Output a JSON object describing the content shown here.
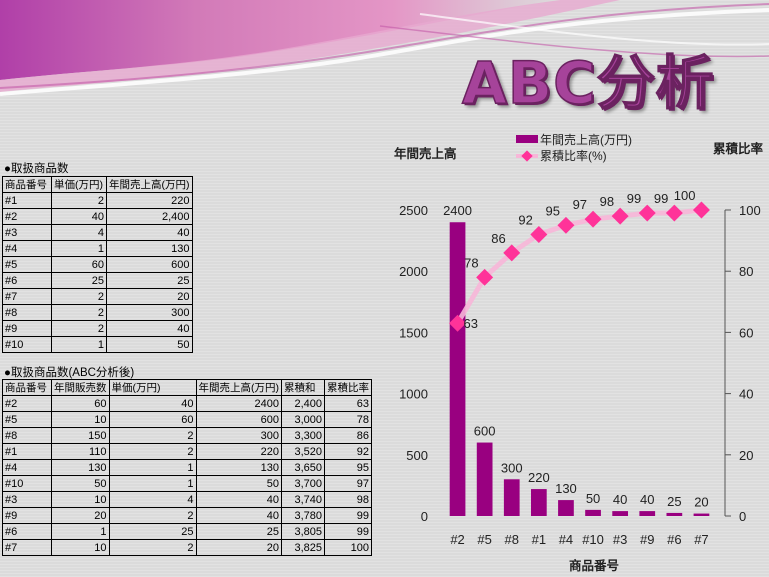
{
  "title": "ABC分析",
  "table1": {
    "title": "●取扱商品数",
    "headers": [
      "商品番号",
      "単価(万円)",
      "年間売上高(万円)"
    ],
    "rows": [
      [
        "#1",
        "2",
        "220"
      ],
      [
        "#2",
        "40",
        "2,400"
      ],
      [
        "#3",
        "4",
        "40"
      ],
      [
        "#4",
        "1",
        "130"
      ],
      [
        "#5",
        "60",
        "600"
      ],
      [
        "#6",
        "25",
        "25"
      ],
      [
        "#7",
        "2",
        "20"
      ],
      [
        "#8",
        "2",
        "300"
      ],
      [
        "#9",
        "2",
        "40"
      ],
      [
        "#10",
        "1",
        "50"
      ]
    ]
  },
  "table2": {
    "title": "●取扱商品数(ABC分析後)",
    "headers": [
      "商品番号",
      "年間販売数",
      "単価(万円)",
      "年間売上高(万円)",
      "累積和",
      "累積比率"
    ],
    "rows": [
      [
        "#2",
        "60",
        "40",
        "2400",
        "2,400",
        "63"
      ],
      [
        "#5",
        "10",
        "60",
        "600",
        "3,000",
        "78"
      ],
      [
        "#8",
        "150",
        "2",
        "300",
        "3,300",
        "86"
      ],
      [
        "#1",
        "110",
        "2",
        "220",
        "3,520",
        "92"
      ],
      [
        "#4",
        "130",
        "1",
        "130",
        "3,650",
        "95"
      ],
      [
        "#10",
        "50",
        "1",
        "50",
        "3,700",
        "97"
      ],
      [
        "#3",
        "10",
        "4",
        "40",
        "3,740",
        "98"
      ],
      [
        "#9",
        "20",
        "2",
        "40",
        "3,780",
        "99"
      ],
      [
        "#6",
        "1",
        "25",
        "25",
        "3,805",
        "99"
      ],
      [
        "#7",
        "10",
        "2",
        "20",
        "3,825",
        "100"
      ]
    ]
  },
  "chart_data": {
    "type": "bar",
    "categories": [
      "#2",
      "#5",
      "#8",
      "#1",
      "#4",
      "#10",
      "#3",
      "#9",
      "#6",
      "#7"
    ],
    "series": [
      {
        "name": "年間売上高(万円)",
        "type": "bar",
        "axis": "left",
        "color": "#990080",
        "values": [
          2400,
          600,
          300,
          220,
          130,
          50,
          40,
          40,
          25,
          20
        ]
      },
      {
        "name": "累積比率(%)",
        "type": "line",
        "axis": "right",
        "color": "#ff3399",
        "values": [
          63,
          78,
          86,
          92,
          95,
          97,
          98,
          99,
          99,
          100
        ]
      }
    ],
    "ylabel_left": "年間売上高",
    "ylabel_right": "累積比率",
    "xlabel": "商品番号",
    "ylim_left": [
      0,
      2500
    ],
    "ylim_right": [
      0,
      100
    ],
    "yticks_left": [
      "0",
      "500",
      "1000",
      "1500",
      "2000",
      "2500"
    ],
    "yticks_right": [
      "0",
      "20",
      "40",
      "60",
      "80",
      "100"
    ],
    "legend": "top",
    "grid": false
  }
}
